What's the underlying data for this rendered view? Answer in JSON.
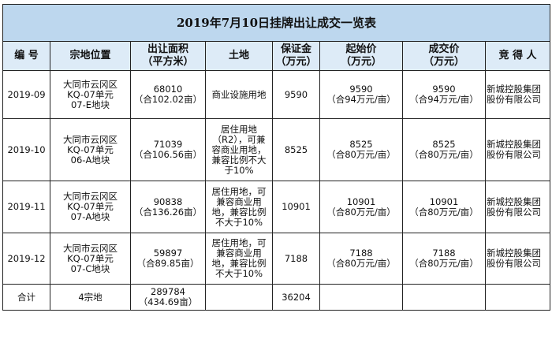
{
  "title": "2019年7月10日挂牌出让成交一览表",
  "headers": [
    "编 号",
    "宗地位置",
    "出让面积\n（平方米）",
    "土地",
    "保证金\n（万元）",
    "起始价\n（万元）",
    "成交价\n（万元）",
    "竞 得 人"
  ],
  "rows": [
    {
      "id": "2019-09",
      "location": "大同市云冈区\nKQ-07单元\n07-E地块",
      "area": "68010\n（合102.02亩）",
      "land": "商业设施用地",
      "deposit": "9590",
      "start_price": "9590\n（合94万元/亩）",
      "deal_price": "9590\n（合94万元/亩）",
      "winner": "新城控股集团\n股份有限公司"
    },
    {
      "id": "2019-10",
      "location": "大同市云冈区\nKQ-07单元\n06-A地块",
      "area": "71039\n（合106.56亩）",
      "land": "居住用地\n（R2），可兼\n容商业用地，\n兼容比例不大\n于10%",
      "deposit": "8525",
      "start_price": "8525\n（合80万元/亩）",
      "deal_price": "8525\n（合80万元/亩）",
      "winner": "新城控股集团\n股份有限公司"
    },
    {
      "id": "2019-11",
      "location": "大同市云冈区\nKQ-07单元\n07-A地块",
      "area": "90838\n（合136.26亩）",
      "land": "居住用地，可\n兼容商业用\n地，兼容比例\n不大于10%",
      "deposit": "10901",
      "start_price": "10901\n（合80万元/亩）",
      "deal_price": "10901\n（合80万元/亩）",
      "winner": "新城控股集团\n股份有限公司"
    },
    {
      "id": "2019-12",
      "location": "大同市云冈区\nKQ-07单元\n07-C地块",
      "area": "59897\n（合89.85亩）",
      "land": "居住用地，可\n兼容商业用\n地，兼容比例\n不大于10%",
      "deposit": "7188",
      "start_price": "7188\n（合80万元/亩）",
      "deal_price": "7188\n（合80万元/亩）",
      "winner": "新城控股集团\n股份有限公司"
    }
  ],
  "total": {
    "label": "合计",
    "location": "4宗地",
    "area": "289784\n（434.69亩）",
    "land": "",
    "deposit": "36204",
    "start_price": "",
    "deal_price": "",
    "winner": ""
  }
}
